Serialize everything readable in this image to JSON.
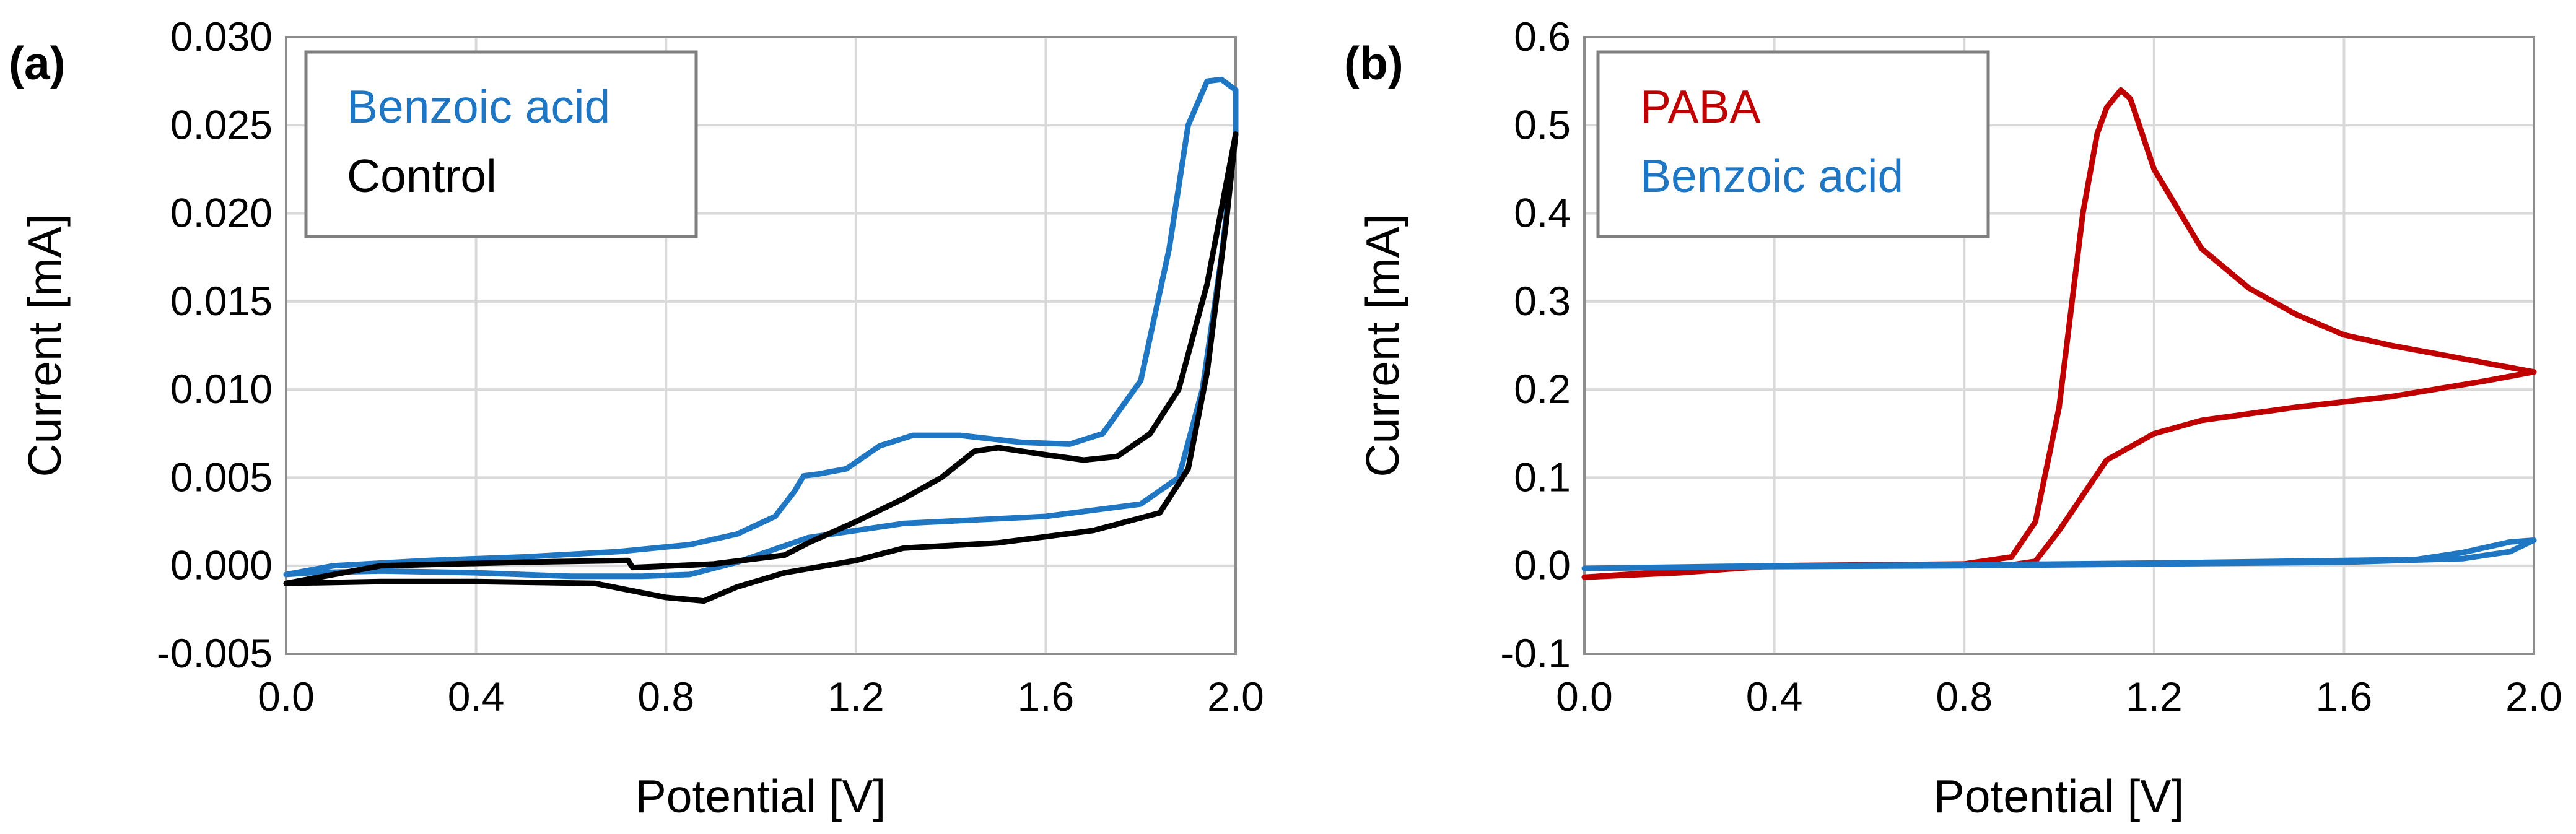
{
  "chart_data": [
    {
      "panel": "(a)",
      "type": "line",
      "xlabel": "Potential [V]",
      "ylabel": "Current [mA]",
      "xlim": [
        0.0,
        2.0
      ],
      "ylim": [
        -0.005,
        0.03
      ],
      "x_ticks": [
        "0.0",
        "0.4",
        "0.8",
        "1.2",
        "1.6",
        "2.0"
      ],
      "y_ticks": [
        "-0.005",
        "0.000",
        "0.005",
        "0.010",
        "0.015",
        "0.020",
        "0.025",
        "0.030"
      ],
      "grid": true,
      "legend_position": "top-left",
      "series": [
        {
          "name": "Benzoic acid",
          "color": "#1f77c4",
          "points": [
            [
              0.0,
              -0.0005
            ],
            [
              0.1,
              0.0
            ],
            [
              0.3,
              0.0003
            ],
            [
              0.5,
              0.0005
            ],
            [
              0.7,
              0.0008
            ],
            [
              0.85,
              0.0012
            ],
            [
              0.95,
              0.0018
            ],
            [
              1.03,
              0.0028
            ],
            [
              1.07,
              0.0042
            ],
            [
              1.09,
              0.0051
            ],
            [
              1.12,
              0.0052
            ],
            [
              1.18,
              0.0055
            ],
            [
              1.25,
              0.0068
            ],
            [
              1.32,
              0.0074
            ],
            [
              1.42,
              0.0074
            ],
            [
              1.55,
              0.007
            ],
            [
              1.65,
              0.0069
            ],
            [
              1.72,
              0.0075
            ],
            [
              1.8,
              0.0105
            ],
            [
              1.86,
              0.018
            ],
            [
              1.9,
              0.025
            ],
            [
              1.94,
              0.0275
            ],
            [
              1.97,
              0.0276
            ],
            [
              2.0,
              0.027
            ],
            [
              2.0,
              0.0245
            ],
            [
              1.97,
              0.0175
            ],
            [
              1.93,
              0.01
            ],
            [
              1.88,
              0.005
            ],
            [
              1.8,
              0.0035
            ],
            [
              1.6,
              0.0028
            ],
            [
              1.3,
              0.0024
            ],
            [
              1.1,
              0.0016
            ],
            [
              0.95,
              0.0002
            ],
            [
              0.85,
              -0.0005
            ],
            [
              0.75,
              -0.0006
            ],
            [
              0.6,
              -0.0006
            ],
            [
              0.4,
              -0.0004
            ],
            [
              0.2,
              -0.0003
            ],
            [
              0.05,
              -0.0004
            ],
            [
              0.0,
              -0.0005
            ]
          ]
        },
        {
          "name": "Control",
          "color": "#000000",
          "points": [
            [
              0.0,
              -0.001
            ],
            [
              0.2,
              0.0
            ],
            [
              0.5,
              0.0002
            ],
            [
              0.72,
              0.0003
            ],
            [
              0.73,
              -0.0001
            ],
            [
              0.9,
              0.0001
            ],
            [
              1.05,
              0.0006
            ],
            [
              1.1,
              0.0013
            ],
            [
              1.2,
              0.0025
            ],
            [
              1.3,
              0.0038
            ],
            [
              1.38,
              0.005
            ],
            [
              1.45,
              0.0065
            ],
            [
              1.5,
              0.0067
            ],
            [
              1.6,
              0.0063
            ],
            [
              1.68,
              0.006
            ],
            [
              1.75,
              0.0062
            ],
            [
              1.82,
              0.0075
            ],
            [
              1.88,
              0.01
            ],
            [
              1.94,
              0.016
            ],
            [
              2.0,
              0.0245
            ],
            [
              1.98,
              0.0195
            ],
            [
              1.94,
              0.011
            ],
            [
              1.9,
              0.0055
            ],
            [
              1.84,
              0.003
            ],
            [
              1.7,
              0.002
            ],
            [
              1.5,
              0.0013
            ],
            [
              1.3,
              0.001
            ],
            [
              1.2,
              0.0003
            ],
            [
              1.05,
              -0.0004
            ],
            [
              0.95,
              -0.0012
            ],
            [
              0.88,
              -0.002
            ],
            [
              0.8,
              -0.0018
            ],
            [
              0.65,
              -0.001
            ],
            [
              0.4,
              -0.0009
            ],
            [
              0.2,
              -0.0009
            ],
            [
              0.0,
              -0.001
            ]
          ]
        }
      ]
    },
    {
      "panel": "(b)",
      "type": "line",
      "xlabel": "Potential [V]",
      "ylabel": "Current [mA]",
      "xlim": [
        0.0,
        2.0
      ],
      "ylim": [
        -0.1,
        0.6
      ],
      "x_ticks": [
        "0.0",
        "0.4",
        "0.8",
        "1.2",
        "1.6",
        "2.0"
      ],
      "y_ticks": [
        "-0.1",
        "0.0",
        "0.1",
        "0.2",
        "0.3",
        "0.4",
        "0.5",
        "0.6"
      ],
      "grid": true,
      "legend_position": "top-left",
      "series": [
        {
          "name": "PABA",
          "color": "#c00000",
          "points": [
            [
              0.0,
              -0.013
            ],
            [
              0.2,
              -0.008
            ],
            [
              0.4,
              0.0
            ],
            [
              0.6,
              0.001
            ],
            [
              0.8,
              0.002
            ],
            [
              0.9,
              0.01
            ],
            [
              0.95,
              0.05
            ],
            [
              1.0,
              0.18
            ],
            [
              1.05,
              0.4
            ],
            [
              1.08,
              0.49
            ],
            [
              1.1,
              0.52
            ],
            [
              1.13,
              0.54
            ],
            [
              1.15,
              0.53
            ],
            [
              1.2,
              0.45
            ],
            [
              1.3,
              0.36
            ],
            [
              1.4,
              0.315
            ],
            [
              1.5,
              0.285
            ],
            [
              1.6,
              0.262
            ],
            [
              1.7,
              0.25
            ],
            [
              1.8,
              0.24
            ],
            [
              1.9,
              0.23
            ],
            [
              2.0,
              0.22
            ],
            [
              1.9,
              0.21
            ],
            [
              1.7,
              0.192
            ],
            [
              1.5,
              0.18
            ],
            [
              1.3,
              0.165
            ],
            [
              1.2,
              0.15
            ],
            [
              1.1,
              0.12
            ],
            [
              1.0,
              0.04
            ],
            [
              0.95,
              0.005
            ],
            [
              0.9,
              0.001
            ],
            [
              0.7,
              0.0
            ],
            [
              0.4,
              0.0
            ],
            [
              0.2,
              -0.006
            ],
            [
              0.0,
              -0.013
            ]
          ]
        },
        {
          "name": "Benzoic acid",
          "color": "#1f77c4",
          "points": [
            [
              0.0,
              -0.003
            ],
            [
              0.4,
              0.0
            ],
            [
              0.8,
              0.001
            ],
            [
              1.2,
              0.003
            ],
            [
              1.6,
              0.006
            ],
            [
              1.75,
              0.007
            ],
            [
              1.85,
              0.015
            ],
            [
              1.95,
              0.027
            ],
            [
              2.0,
              0.029
            ],
            [
              1.95,
              0.016
            ],
            [
              1.85,
              0.008
            ],
            [
              1.6,
              0.004
            ],
            [
              1.2,
              0.002
            ],
            [
              0.8,
              0.0
            ],
            [
              0.4,
              -0.001
            ],
            [
              0.0,
              -0.003
            ]
          ]
        }
      ]
    }
  ]
}
